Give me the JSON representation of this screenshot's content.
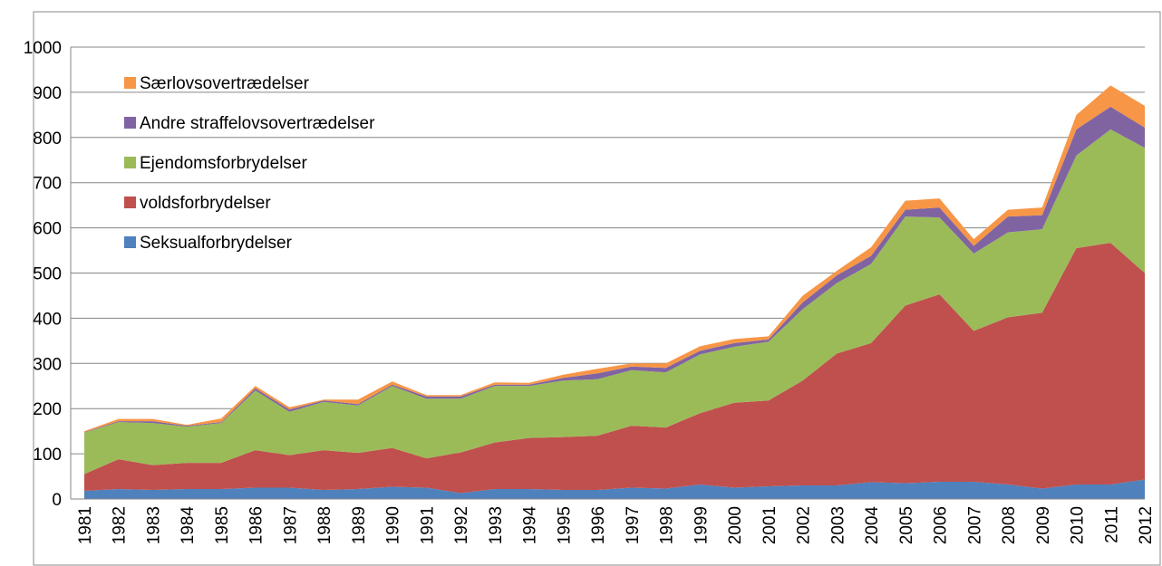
{
  "chart_data": {
    "type": "stacked_area",
    "categories": [
      "1981",
      "1982",
      "1983",
      "1984",
      "1985",
      "1986",
      "1987",
      "1988",
      "1989",
      "1990",
      "1991",
      "1992",
      "1993",
      "1994",
      "1995",
      "1996",
      "1997",
      "1998",
      "1999",
      "2000",
      "2001",
      "2002",
      "2003",
      "2004",
      "2005",
      "2006",
      "2007",
      "2008",
      "2009",
      "2010",
      "2011",
      "2012"
    ],
    "series": [
      {
        "name": "Seksualforbrydelser",
        "color": "#4f81bd",
        "values": [
          18,
          22,
          20,
          22,
          22,
          25,
          25,
          20,
          22,
          27,
          25,
          13,
          22,
          22,
          20,
          20,
          25,
          23,
          32,
          25,
          28,
          30,
          30,
          37,
          35,
          38,
          38,
          32,
          23,
          32,
          32,
          43
        ]
      },
      {
        "name": "voldsforbrydelser",
        "color": "#c0504d",
        "values": [
          37,
          66,
          55,
          58,
          58,
          83,
          72,
          88,
          80,
          86,
          65,
          90,
          103,
          113,
          117,
          120,
          137,
          135,
          158,
          188,
          190,
          232,
          292,
          308,
          393,
          415,
          334,
          370,
          389,
          523,
          535,
          457
        ]
      },
      {
        "name": "Ejendomsforbrydelser",
        "color": "#9bbb59",
        "values": [
          92,
          82,
          93,
          80,
          88,
          132,
          96,
          107,
          105,
          137,
          132,
          119,
          125,
          115,
          125,
          125,
          123,
          122,
          130,
          124,
          130,
          158,
          156,
          175,
          197,
          170,
          171,
          188,
          185,
          205,
          251,
          277
        ]
      },
      {
        "name": "Andre straffelovsovertrædelser",
        "color": "#8064a2",
        "values": [
          1,
          2,
          4,
          2,
          2,
          5,
          5,
          3,
          3,
          3,
          5,
          5,
          3,
          3,
          6,
          13,
          8,
          10,
          8,
          8,
          5,
          15,
          17,
          18,
          15,
          22,
          17,
          35,
          31,
          58,
          50,
          45
        ]
      },
      {
        "name": "Særlovsovertrædelser",
        "color": "#f79646",
        "values": [
          2,
          5,
          5,
          2,
          8,
          5,
          5,
          2,
          10,
          7,
          3,
          3,
          5,
          4,
          7,
          10,
          7,
          10,
          10,
          9,
          7,
          15,
          10,
          19,
          20,
          20,
          15,
          15,
          17,
          32,
          47,
          48
        ]
      }
    ],
    "ylim": [
      0,
      1000
    ],
    "yticks": [
      0,
      100,
      200,
      300,
      400,
      500,
      600,
      700,
      800,
      900,
      1000
    ],
    "grid": true,
    "legend": "upper left"
  }
}
